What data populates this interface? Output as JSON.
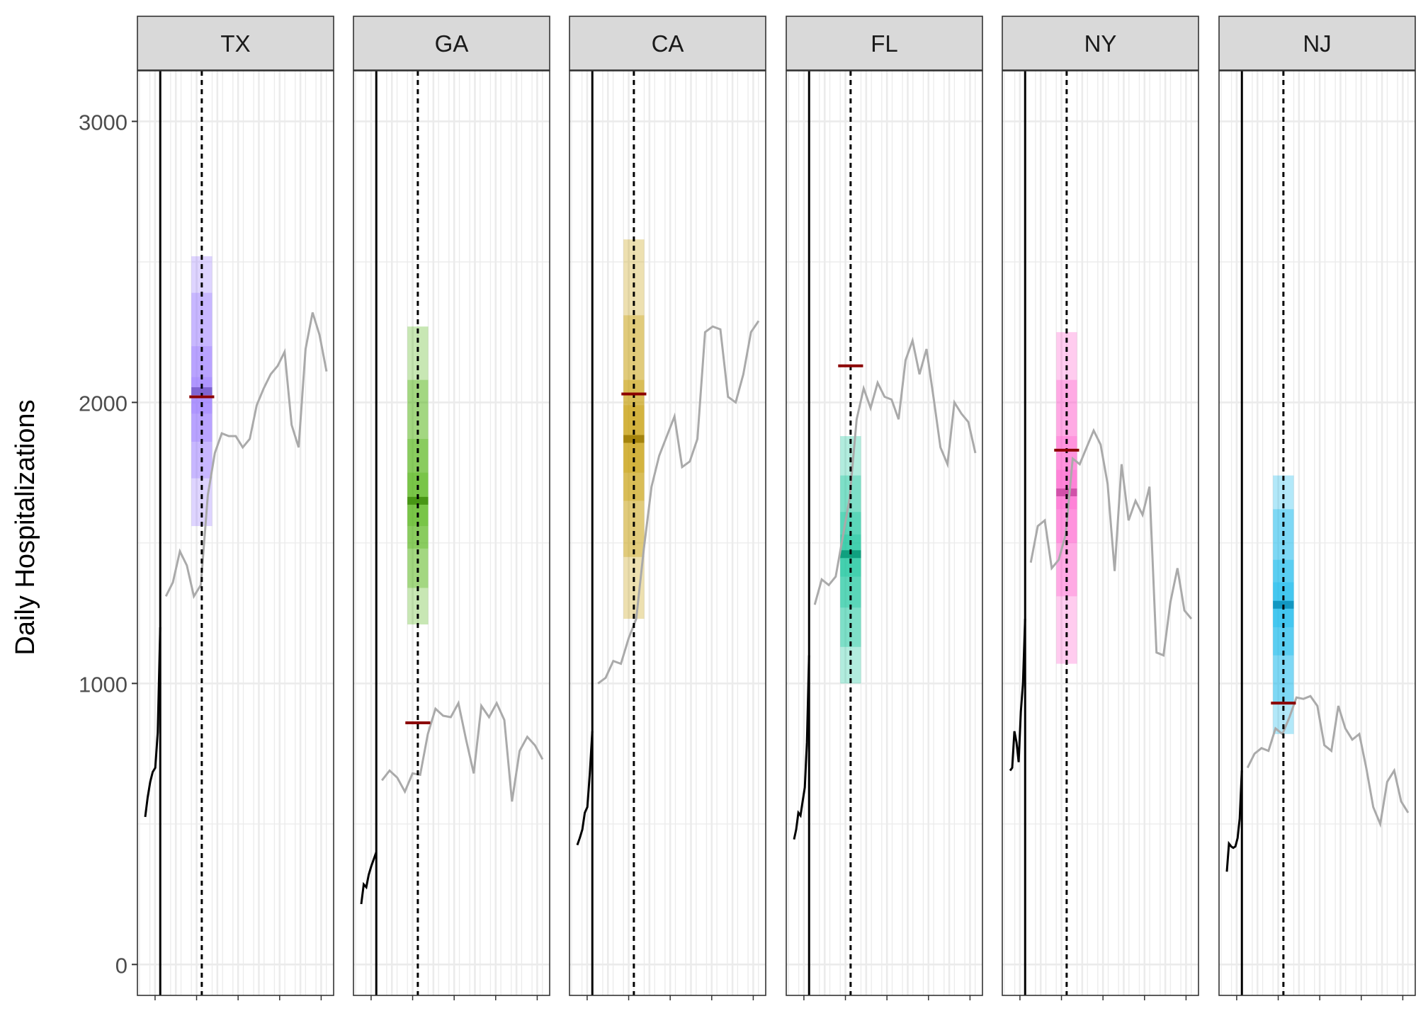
{
  "chart_data": {
    "type": "line",
    "ylabel": "Daily Hospitalizations",
    "xlabel": "",
    "ylim": [
      -110,
      3180
    ],
    "xlim": [
      0.6,
      38.4
    ],
    "yticks": [
      0,
      1000,
      2000,
      3000
    ],
    "grid": true,
    "facet_order": [
      "TX",
      "GA",
      "CA",
      "FL",
      "NY",
      "NJ"
    ],
    "forecast_date_x": 5,
    "target_date_x": 13,
    "colors": {
      "history": "#000000",
      "later": "#aaaaaa",
      "truth_marker": "#8b0000",
      "facet_strip": "#d9d9d9",
      "grid": "#ebebeb"
    },
    "panels": [
      {
        "name": "TX",
        "color": "#9b7bff",
        "history": [
          [
            1,
            525
          ],
          [
            2,
            595
          ],
          [
            3,
            650
          ],
          [
            4,
            685
          ],
          [
            5,
            700
          ],
          [
            6,
            825
          ],
          [
            7,
            1200
          ]
        ],
        "later": [
          [
            1,
            1310
          ],
          [
            2,
            1360
          ],
          [
            3,
            1470
          ],
          [
            4,
            1420
          ],
          [
            5,
            1310
          ],
          [
            6,
            1350
          ],
          [
            7,
            1670
          ],
          [
            8,
            1820
          ],
          [
            9,
            1890
          ],
          [
            10,
            1880
          ],
          [
            11,
            1880
          ],
          [
            12,
            1840
          ],
          [
            13,
            1870
          ],
          [
            14,
            1990
          ],
          [
            15,
            2050
          ],
          [
            16,
            2100
          ],
          [
            17,
            2130
          ],
          [
            18,
            2180
          ],
          [
            19,
            1920
          ],
          [
            20,
            1840
          ],
          [
            21,
            2190
          ],
          [
            22,
            2320
          ],
          [
            23,
            2240
          ],
          [
            24,
            2110
          ]
        ],
        "median": 2040,
        "bands": [
          [
            1560,
            2520
          ],
          [
            1730,
            2390
          ],
          [
            1860,
            2200
          ],
          [
            1960,
            2090
          ]
        ],
        "truth": 2020
      },
      {
        "name": "GA",
        "color": "#58b71a",
        "history": [
          [
            1,
            215
          ],
          [
            2,
            285
          ],
          [
            3,
            275
          ],
          [
            4,
            320
          ],
          [
            5,
            350
          ],
          [
            6,
            375
          ],
          [
            7,
            400
          ]
        ],
        "later": [
          [
            1,
            655
          ],
          [
            2,
            690
          ],
          [
            3,
            665
          ],
          [
            4,
            615
          ],
          [
            5,
            680
          ],
          [
            6,
            675
          ],
          [
            7,
            820
          ],
          [
            8,
            910
          ],
          [
            9,
            885
          ],
          [
            10,
            880
          ],
          [
            11,
            930
          ],
          [
            12,
            800
          ],
          [
            13,
            680
          ],
          [
            14,
            920
          ],
          [
            15,
            880
          ],
          [
            16,
            930
          ],
          [
            17,
            870
          ],
          [
            18,
            580
          ],
          [
            19,
            760
          ],
          [
            20,
            810
          ],
          [
            21,
            780
          ],
          [
            22,
            730
          ]
        ],
        "median": 1650,
        "bands": [
          [
            1210,
            2270
          ],
          [
            1340,
            2080
          ],
          [
            1480,
            1870
          ],
          [
            1560,
            1750
          ]
        ],
        "truth": 860
      },
      {
        "name": "CA",
        "color": "#c9a010",
        "history": [
          [
            1,
            425
          ],
          [
            2,
            450
          ],
          [
            3,
            480
          ],
          [
            4,
            540
          ],
          [
            5,
            560
          ],
          [
            6,
            680
          ],
          [
            7,
            830
          ]
        ],
        "later": [
          [
            1,
            1000
          ],
          [
            2,
            1020
          ],
          [
            3,
            1080
          ],
          [
            4,
            1070
          ],
          [
            5,
            1160
          ],
          [
            6,
            1230
          ],
          [
            7,
            1480
          ],
          [
            8,
            1700
          ],
          [
            9,
            1810
          ],
          [
            10,
            1880
          ],
          [
            11,
            1950
          ],
          [
            12,
            1770
          ],
          [
            13,
            1790
          ],
          [
            14,
            1870
          ],
          [
            15,
            2250
          ],
          [
            16,
            2270
          ],
          [
            17,
            2260
          ],
          [
            18,
            2020
          ],
          [
            19,
            2000
          ],
          [
            20,
            2100
          ],
          [
            21,
            2250
          ],
          [
            22,
            2290
          ]
        ],
        "median": 1870,
        "bands": [
          [
            1230,
            2580
          ],
          [
            1450,
            2310
          ],
          [
            1650,
            2080
          ],
          [
            1750,
            1990
          ]
        ],
        "truth": 2030
      },
      {
        "name": "FL",
        "color": "#14c49c",
        "history": [
          [
            1,
            445
          ],
          [
            2,
            480
          ],
          [
            3,
            540
          ],
          [
            4,
            530
          ],
          [
            5,
            580
          ],
          [
            6,
            630
          ],
          [
            7,
            790
          ],
          [
            8,
            1100
          ]
        ],
        "later": [
          [
            1,
            1280
          ],
          [
            2,
            1370
          ],
          [
            3,
            1350
          ],
          [
            4,
            1380
          ],
          [
            5,
            1520
          ],
          [
            6,
            1660
          ],
          [
            7,
            1940
          ],
          [
            8,
            2050
          ],
          [
            9,
            1980
          ],
          [
            10,
            2070
          ],
          [
            11,
            2020
          ],
          [
            12,
            2010
          ],
          [
            13,
            1940
          ],
          [
            14,
            2150
          ],
          [
            15,
            2220
          ],
          [
            16,
            2100
          ],
          [
            17,
            2190
          ],
          [
            18,
            2020
          ],
          [
            19,
            1840
          ],
          [
            20,
            1780
          ],
          [
            21,
            2000
          ],
          [
            22,
            1960
          ],
          [
            23,
            1930
          ],
          [
            24,
            1820
          ]
        ],
        "median": 1460,
        "bands": [
          [
            1000,
            1880
          ],
          [
            1130,
            1740
          ],
          [
            1270,
            1610
          ],
          [
            1380,
            1530
          ]
        ],
        "truth": 2130
      },
      {
        "name": "NY",
        "color": "#ff63cf",
        "history": [
          [
            1,
            690
          ],
          [
            2,
            700
          ],
          [
            3,
            830
          ],
          [
            4,
            790
          ],
          [
            5,
            720
          ],
          [
            6,
            900
          ],
          [
            7,
            1000
          ],
          [
            8,
            1230
          ]
        ],
        "later": [
          [
            1,
            1430
          ],
          [
            2,
            1560
          ],
          [
            3,
            1580
          ],
          [
            4,
            1410
          ],
          [
            5,
            1440
          ],
          [
            6,
            1530
          ],
          [
            7,
            1800
          ],
          [
            8,
            1780
          ],
          [
            9,
            1840
          ],
          [
            10,
            1900
          ],
          [
            11,
            1850
          ],
          [
            12,
            1710
          ],
          [
            13,
            1400
          ],
          [
            14,
            1780
          ],
          [
            15,
            1580
          ],
          [
            16,
            1650
          ],
          [
            17,
            1600
          ],
          [
            18,
            1700
          ],
          [
            19,
            1110
          ],
          [
            20,
            1100
          ],
          [
            21,
            1290
          ],
          [
            22,
            1410
          ],
          [
            23,
            1260
          ],
          [
            24,
            1230
          ]
        ],
        "median": 1680,
        "bands": [
          [
            1070,
            2250
          ],
          [
            1310,
            2080
          ],
          [
            1500,
            1880
          ],
          [
            1620,
            1760
          ]
        ],
        "truth": 1830
      },
      {
        "name": "NJ",
        "color": "#16b9ec",
        "history": [
          [
            1,
            330
          ],
          [
            2,
            430
          ],
          [
            3,
            420
          ],
          [
            4,
            415
          ],
          [
            5,
            420
          ],
          [
            6,
            450
          ],
          [
            7,
            520
          ],
          [
            8,
            690
          ]
        ],
        "later": [
          [
            1,
            700
          ],
          [
            2,
            750
          ],
          [
            3,
            770
          ],
          [
            4,
            760
          ],
          [
            5,
            840
          ],
          [
            6,
            820
          ],
          [
            7,
            880
          ],
          [
            8,
            950
          ],
          [
            9,
            945
          ],
          [
            10,
            955
          ],
          [
            11,
            920
          ],
          [
            12,
            780
          ],
          [
            13,
            760
          ],
          [
            14,
            920
          ],
          [
            15,
            840
          ],
          [
            16,
            800
          ],
          [
            17,
            820
          ],
          [
            18,
            700
          ],
          [
            19,
            560
          ],
          [
            20,
            500
          ],
          [
            21,
            650
          ],
          [
            22,
            690
          ],
          [
            23,
            580
          ],
          [
            24,
            540
          ]
        ],
        "median": 1280,
        "bands": [
          [
            820,
            1740
          ],
          [
            930,
            1620
          ],
          [
            1100,
            1440
          ],
          [
            1200,
            1360
          ]
        ],
        "truth": 930
      }
    ]
  }
}
